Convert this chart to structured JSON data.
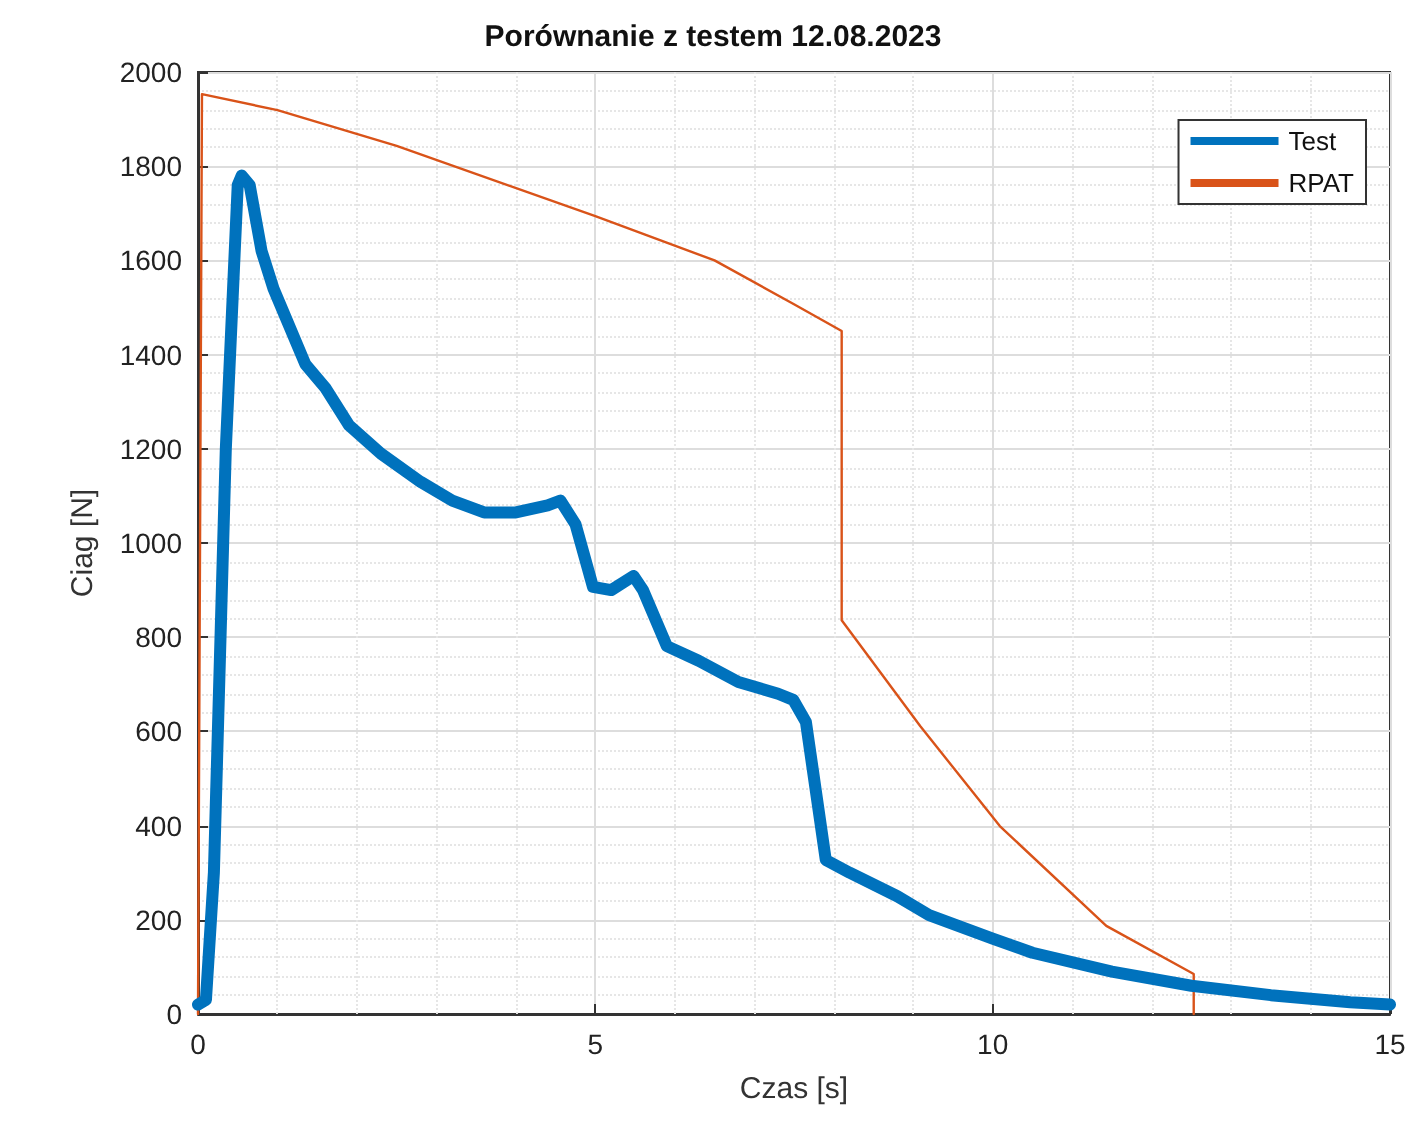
{
  "chart_data": {
    "type": "line",
    "title": "Porównanie z testem 12.08.2023",
    "xlabel": "Czas [s]",
    "ylabel": "Ciag [N]",
    "xlim": [
      0,
      15
    ],
    "xticks": [
      0,
      5,
      10,
      15
    ],
    "ylim": [
      0,
      2000
    ],
    "yticks": [
      0,
      200,
      400,
      600,
      800,
      1000,
      1200,
      1400,
      1600,
      1800,
      2000
    ],
    "grid": true,
    "legend": "top right",
    "marker": "none",
    "series": [
      {
        "name": "Test",
        "color": "#0072bd",
        "x": [
          0,
          0.1,
          0.2,
          0.35,
          0.5,
          0.55,
          0.65,
          0.8,
          0.95,
          1.1,
          1.35,
          1.6,
          1.9,
          2.3,
          2.8,
          3.2,
          3.6,
          4.0,
          4.4,
          4.56,
          4.75,
          4.97,
          5.2,
          5.48,
          5.6,
          5.9,
          6.3,
          6.8,
          7.3,
          7.49,
          7.65,
          7.9,
          8.2,
          8.8,
          9.2,
          10,
          10.5,
          11.5,
          12.5,
          13.5,
          14.5,
          15
        ],
        "values": [
          20,
          30,
          300,
          1200,
          1760,
          1780,
          1760,
          1620,
          1540,
          1480,
          1380,
          1330,
          1250,
          1190,
          1130,
          1090,
          1065,
          1065,
          1080,
          1090,
          1040,
          907,
          900,
          930,
          900,
          781,
          750,
          705,
          680,
          667,
          620,
          327,
          300,
          250,
          210,
          160,
          130,
          90,
          60,
          40,
          25,
          20
        ]
      },
      {
        "name": "RPAT",
        "color": "#d95319",
        "x": [
          0,
          0.05,
          1,
          2.5,
          5,
          6.5,
          7.5,
          8.1,
          8.1,
          9.09,
          10.09,
          11.43,
          12.53,
          12.53
        ],
        "values": [
          0,
          1953,
          1919,
          1843,
          1694,
          1600,
          1507,
          1450,
          836,
          611,
          399,
          187,
          85,
          0
        ]
      }
    ]
  }
}
